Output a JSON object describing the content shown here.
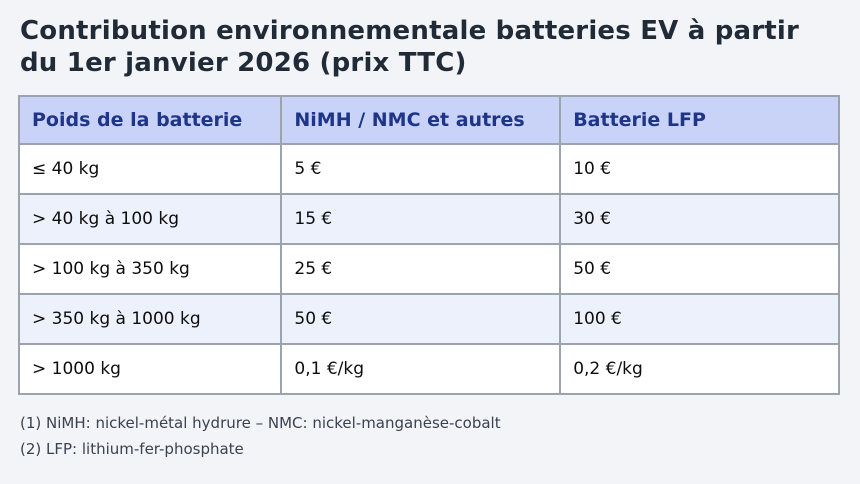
{
  "page": {
    "title": "Contribution environnementale batteries EV à partir du 1er janvier 2026 (prix TTC)"
  },
  "table": {
    "headers": [
      "Poids de la batterie",
      "NiMH / NMC et autres",
      "Batterie LFP"
    ],
    "rows": [
      [
        "≤ 40 kg",
        "5 €",
        "10 €"
      ],
      [
        "> 40 kg à 100 kg",
        "15 €",
        "30 €"
      ],
      [
        "> 100 kg à 350 kg",
        "25 €",
        "50 €"
      ],
      [
        "> 350 kg à 1000 kg",
        "50 €",
        "100 €"
      ],
      [
        "> 1000 kg",
        "0,1 €/kg",
        "0,2 €/kg"
      ]
    ]
  },
  "footnotes": [
    "(1) NiMH: nickel-métal hydrure – NMC: nickel-manganèse-cobalt",
    "(2) LFP: lithium-fer-phosphate"
  ],
  "colors": {
    "page_background": "#f2f4f8",
    "header_background": "#c9d2f7",
    "header_text": "#1e3589",
    "row_alt_background": "#edf1fc",
    "border": "#9ba3af",
    "title_text": "#212b38",
    "cell_text": "#0d0d0d",
    "footnote_text": "#3a4250"
  }
}
